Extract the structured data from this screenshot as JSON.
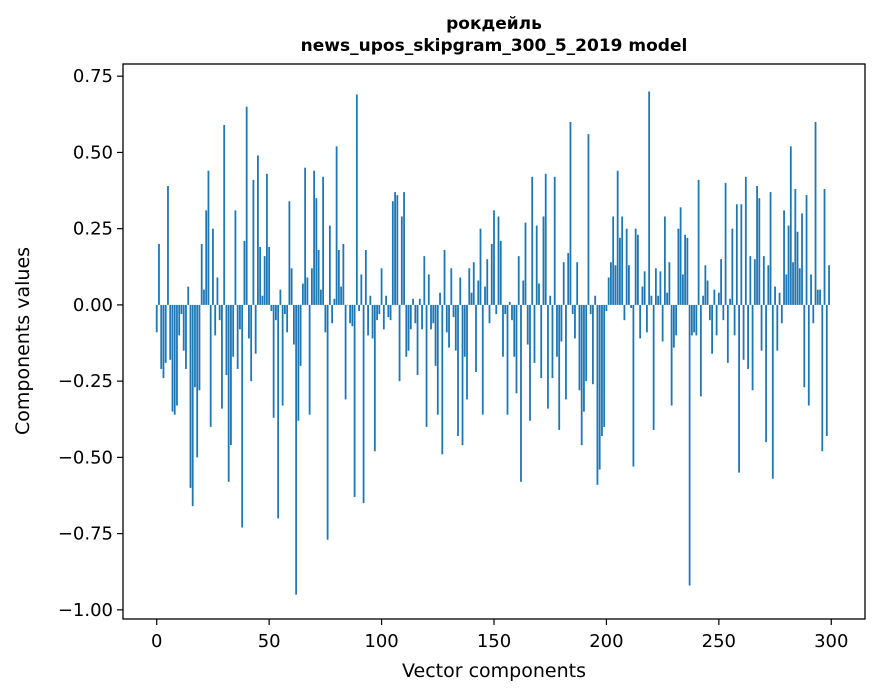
{
  "chart_data": {
    "type": "bar",
    "title": "рокдейль",
    "subtitle": "news_upos_skipgram_300_5_2019 model",
    "xlabel": "Vector components",
    "ylabel": "Components values",
    "xlim": [
      -15,
      315
    ],
    "ylim": [
      -1.03,
      0.79
    ],
    "xticks": [
      0,
      50,
      100,
      150,
      200,
      250,
      300
    ],
    "xtick_labels": [
      "0",
      "50",
      "100",
      "150",
      "200",
      "250",
      "300"
    ],
    "yticks": [
      0.75,
      0.5,
      0.25,
      0.0,
      -0.25,
      -0.5,
      -0.75,
      -1.0
    ],
    "ytick_labels": [
      "0.75",
      "0.50",
      "0.25",
      "0.00",
      "−0.25",
      "−0.50",
      "−0.75",
      "−1.00"
    ],
    "bar_color": "#1f77b4",
    "grid": false,
    "series_name": "components",
    "values": [
      -0.09,
      0.2,
      -0.21,
      -0.24,
      -0.19,
      0.39,
      -0.18,
      -0.35,
      -0.36,
      -0.33,
      -0.1,
      -0.03,
      -0.15,
      -0.21,
      0.06,
      -0.6,
      -0.66,
      -0.27,
      -0.5,
      -0.28,
      0.2,
      0.05,
      0.31,
      0.44,
      -0.4,
      0.25,
      -0.1,
      0.09,
      -0.05,
      -0.34,
      0.59,
      -0.23,
      -0.58,
      -0.46,
      -0.17,
      0.31,
      -0.21,
      -0.08,
      -0.73,
      0.21,
      0.65,
      -0.11,
      -0.25,
      0.41,
      -0.16,
      0.49,
      0.19,
      0.03,
      0.16,
      0.43,
      0.19,
      -0.02,
      -0.37,
      -0.05,
      -0.7,
      0.05,
      -0.33,
      -0.03,
      -0.09,
      0.34,
      0.12,
      -0.13,
      -0.95,
      -0.38,
      -0.2,
      0.07,
      0.45,
      0.09,
      -0.36,
      0.12,
      0.44,
      0.35,
      0.18,
      0.05,
      0.42,
      -0.09,
      -0.77,
      0.26,
      -0.06,
      0.02,
      0.52,
      0.18,
      0.06,
      0.2,
      -0.31,
      0.0,
      -0.06,
      -0.07,
      -0.63,
      0.69,
      -0.02,
      0.1,
      -0.65,
      0.18,
      -0.1,
      0.03,
      -0.11,
      -0.48,
      -0.05,
      -0.03,
      0.12,
      -0.08,
      0.03,
      -0.04,
      -0.05,
      0.34,
      0.37,
      0.36,
      -0.25,
      0.29,
      0.37,
      -0.17,
      -0.15,
      -0.08,
      0.02,
      -0.06,
      -0.23,
      0.02,
      -0.08,
      0.16,
      -0.4,
      0.1,
      -0.08,
      -0.06,
      -0.2,
      -0.36,
      0.04,
      -0.49,
      0.18,
      -0.09,
      -0.14,
      0.12,
      -0.04,
      -0.15,
      -0.43,
      0.09,
      -0.46,
      -0.17,
      -0.31,
      0.12,
      0.04,
      0.14,
      -0.22,
      0.08,
      0.25,
      -0.36,
      0.06,
      0.15,
      -0.06,
      0.2,
      0.31,
      -0.03,
      0.29,
      0.21,
      -0.17,
      -0.03,
      -0.36,
      0.01,
      -0.05,
      -0.17,
      -0.29,
      0.16,
      -0.58,
      0.08,
      0.27,
      -0.13,
      -0.38,
      0.42,
      -0.19,
      0.26,
      0.07,
      -0.24,
      0.29,
      0.43,
      -0.34,
      0.03,
      -0.24,
      0.42,
      -0.17,
      -0.41,
      -0.12,
      0.14,
      -0.31,
      0.17,
      0.6,
      -0.03,
      -0.11,
      0.14,
      -0.28,
      -0.46,
      -0.35,
      -0.25,
      0.56,
      -0.03,
      -0.26,
      0.03,
      -0.59,
      -0.54,
      -0.43,
      -0.4,
      -0.02,
      0.09,
      0.14,
      0.29,
      0.13,
      0.44,
      0.22,
      0.29,
      -0.05,
      0.25,
      0.13,
      -0.01,
      -0.53,
      0.25,
      0.23,
      -0.11,
      0.06,
      0.11,
      -0.09,
      0.7,
      0.03,
      -0.41,
      0.12,
      0.03,
      0.11,
      -0.12,
      0.29,
      0.04,
      0.14,
      -0.33,
      -0.14,
      -0.1,
      0.25,
      0.32,
      0.1,
      0.23,
      0.22,
      -0.92,
      -0.1,
      -0.09,
      -0.1,
      0.41,
      -0.3,
      0.03,
      0.13,
      0.08,
      -0.05,
      -0.16,
      0.05,
      -0.1,
      0.04,
      0.15,
      -0.05,
      0.4,
      -0.19,
      0.02,
      0.25,
      -0.1,
      0.33,
      -0.55,
      0.33,
      -0.18,
      0.42,
      -0.21,
      0.16,
      -0.28,
      0.15,
      0.39,
      0.35,
      -0.15,
      0.16,
      -0.45,
      0.13,
      0.37,
      -0.57,
      0.06,
      -0.15,
      0.04,
      -0.06,
      0.31,
      0.1,
      0.26,
      0.52,
      0.14,
      0.38,
      0.24,
      0.12,
      0.3,
      -0.27,
      0.36,
      -0.33,
      0.1,
      -0.06,
      0.6,
      0.05,
      0.05,
      -0.48,
      0.38,
      -0.43,
      0.13
    ]
  }
}
